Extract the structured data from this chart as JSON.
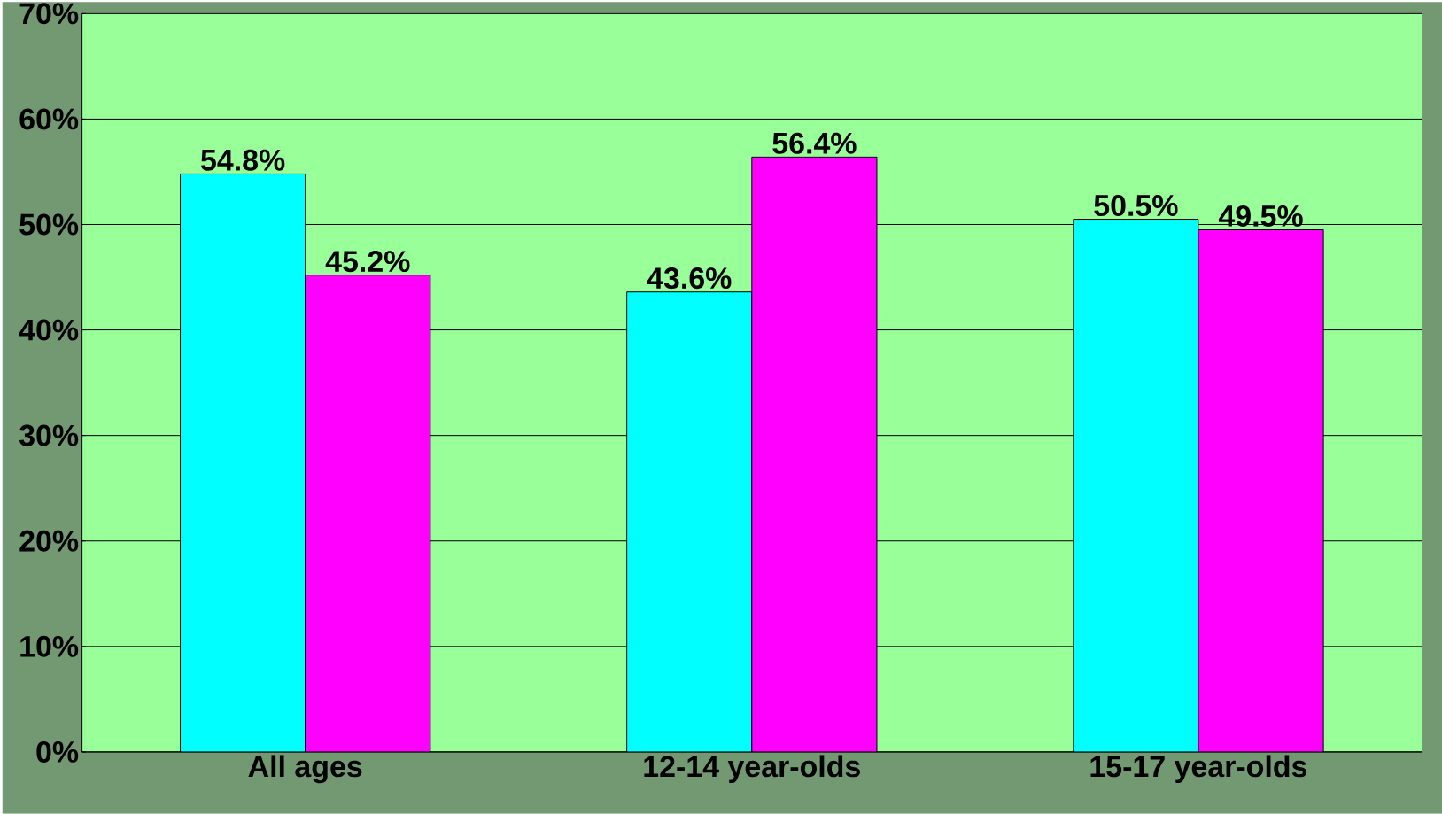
{
  "chart_data": {
    "type": "bar",
    "categories": [
      "All ages",
      "12-14 year-olds",
      "15-17 year-olds"
    ],
    "series": [
      {
        "color": "#00ffff",
        "values": [
          54.8,
          43.6,
          50.5
        ],
        "value_labels": [
          "54.8%",
          "43.6%",
          "50.5%"
        ]
      },
      {
        "color": "#ff00ff",
        "values": [
          45.2,
          56.4,
          49.5
        ],
        "value_labels": [
          "45.2%",
          "56.4%",
          "49.5%"
        ]
      }
    ],
    "ylim": [
      0,
      70
    ],
    "yticks": [
      {
        "value": 0,
        "label": "0%"
      },
      {
        "value": 10,
        "label": "10%"
      },
      {
        "value": 20,
        "label": "20%"
      },
      {
        "value": 30,
        "label": "30%"
      },
      {
        "value": 40,
        "label": "40%"
      },
      {
        "value": 50,
        "label": "50%"
      },
      {
        "value": 60,
        "label": "60%"
      },
      {
        "value": 70,
        "label": "70%"
      }
    ],
    "grid": "y"
  }
}
